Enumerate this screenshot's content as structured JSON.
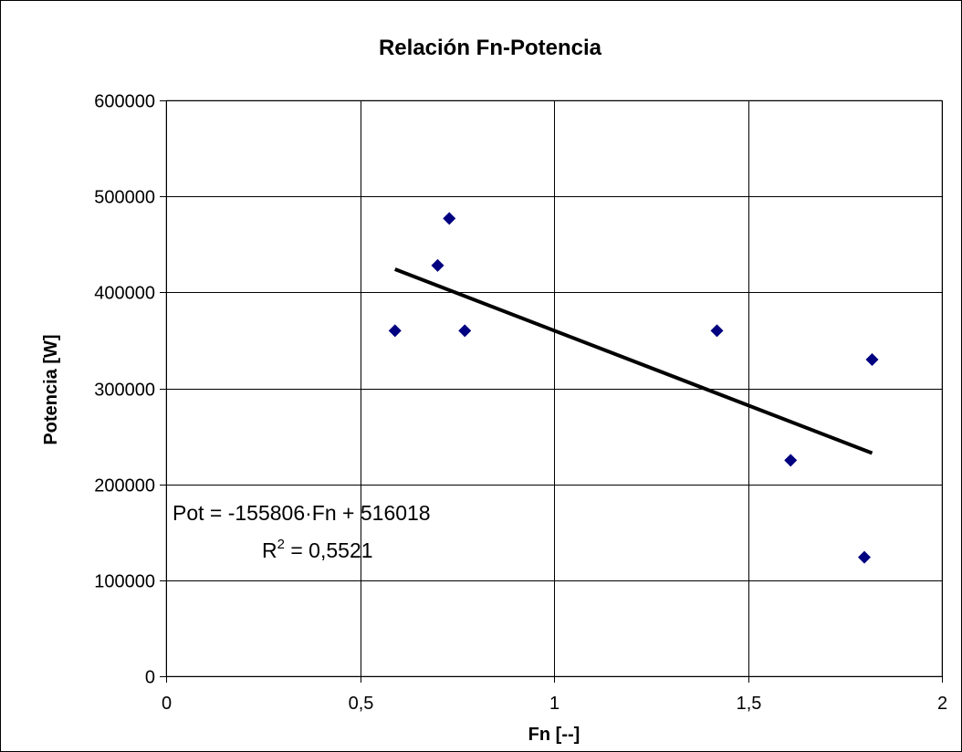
{
  "chart_data": {
    "type": "scatter",
    "title": "Relación Fn-Potencia",
    "xlabel": "Fn [--]",
    "ylabel": "Potencia [W]",
    "xlim": [
      0,
      2
    ],
    "ylim": [
      0,
      600000
    ],
    "x_ticks": [
      0,
      0.5,
      1,
      1.5,
      2
    ],
    "x_tick_labels": [
      "0",
      "0,5",
      "1",
      "1,5",
      "2"
    ],
    "y_ticks": [
      0,
      100000,
      200000,
      300000,
      400000,
      500000,
      600000
    ],
    "y_tick_labels": [
      "0",
      "100000",
      "200000",
      "300000",
      "400000",
      "500000",
      "600000"
    ],
    "grid": true,
    "marker_color": "#000080",
    "series": [
      {
        "points": [
          {
            "x": 0.59,
            "y": 360000
          },
          {
            "x": 0.7,
            "y": 428000
          },
          {
            "x": 0.73,
            "y": 477000
          },
          {
            "x": 0.77,
            "y": 360000
          },
          {
            "x": 1.42,
            "y": 360000
          },
          {
            "x": 1.61,
            "y": 225000
          },
          {
            "x": 1.8,
            "y": 124000
          },
          {
            "x": 1.82,
            "y": 330000
          }
        ]
      }
    ],
    "trendline": {
      "type": "linear",
      "slope": -155806,
      "intercept": 516018,
      "x_range": [
        0.59,
        1.82
      ],
      "color": "#000000",
      "equation_text": "Pot = -155806·Fn + 516018",
      "r2_prefix": "R",
      "r2_sup": "2",
      "r2_value": " = 0,5521"
    }
  }
}
